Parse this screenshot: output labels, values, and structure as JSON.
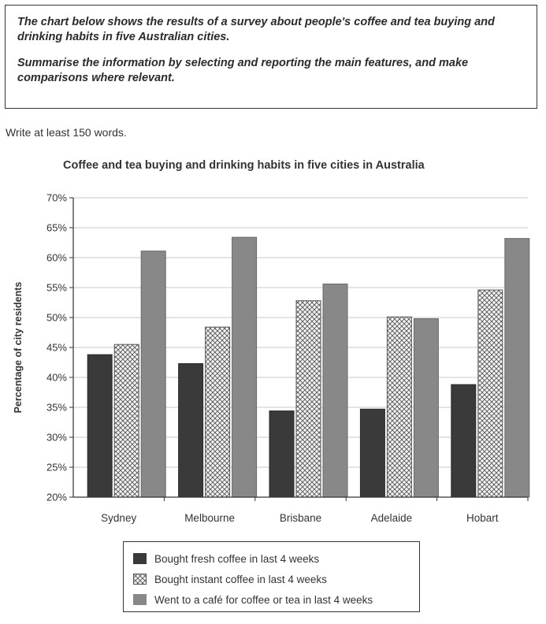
{
  "task": {
    "line1": "The chart below shows the results of a survey about people's coffee and tea buying and drinking habits in five Australian cities.",
    "line2": "Summarise the information by selecting and reporting the main features, and make comparisons where relevant."
  },
  "instruction": "Write at least 150 words.",
  "chart_data": {
    "type": "bar",
    "title": "Coffee and tea buying and drinking habits in five cities in Australia",
    "xlabel": "",
    "ylabel": "Percentage of city residents",
    "ylim": [
      20,
      70
    ],
    "yticks": [
      "20%",
      "25%",
      "30%",
      "35%",
      "40%",
      "45%",
      "50%",
      "55%",
      "60%",
      "65%",
      "70%"
    ],
    "grid": true,
    "legend_position": "bottom",
    "categories": [
      "Sydney",
      "Melbourne",
      "Brisbane",
      "Adelaide",
      "Hobart"
    ],
    "series": [
      {
        "name": "Bought fresh coffee in last 4 weeks",
        "values": [
          43.8,
          42.3,
          34.4,
          34.7,
          38.8
        ],
        "color": "#3a3a3a",
        "pattern": "solid"
      },
      {
        "name": "Bought instant coffee in last 4 weeks",
        "values": [
          45.5,
          48.4,
          52.8,
          50.1,
          54.6
        ],
        "color": "#f0f0f0",
        "pattern": "crosshatch"
      },
      {
        "name": "Went to a café for coffee or tea in last 4 weeks",
        "values": [
          61.1,
          63.4,
          55.6,
          49.8,
          63.2
        ],
        "color": "#888888",
        "pattern": "solid"
      }
    ]
  }
}
